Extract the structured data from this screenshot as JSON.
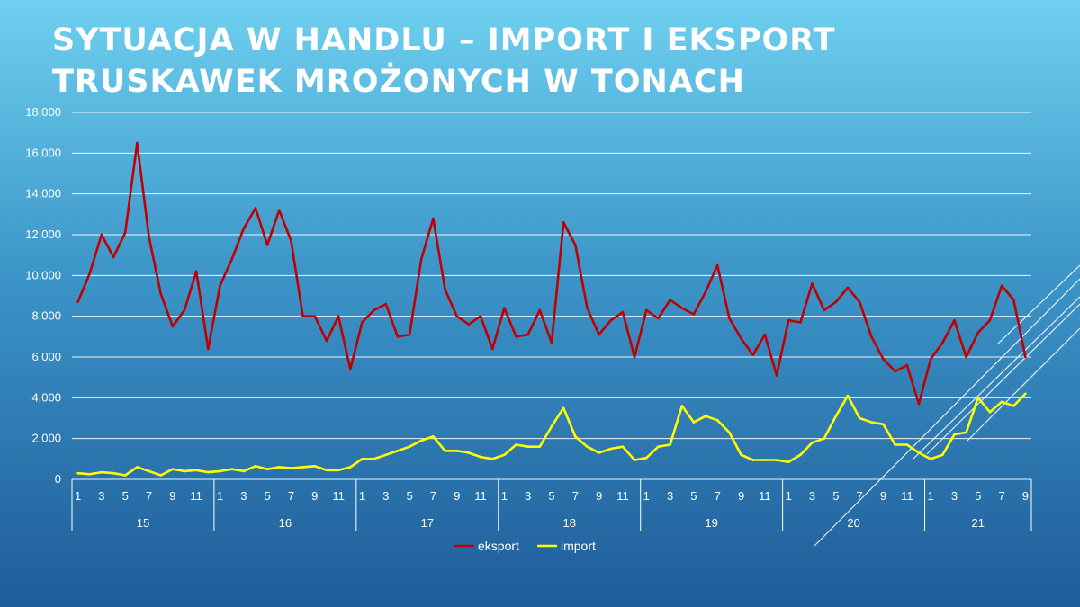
{
  "title": "SYTUACJA W HANDLU – IMPORT I EKSPORT TRUSKAWEK MROŻONYCH W TONACH",
  "chart_data": {
    "type": "line",
    "title": "SYTUACJA W HANDLU – IMPORT I EKSPORT TRUSKAWEK MROŻONYCH W TONACH",
    "xlabel": "",
    "ylabel": "",
    "ylim": [
      0,
      18000
    ],
    "yticks": [
      "0",
      "2,000",
      "4,000",
      "6,000",
      "8,000",
      "10,000",
      "12,000",
      "14,000",
      "16,000",
      "18,000"
    ],
    "grid": true,
    "legend_position": "bottom",
    "years": [
      {
        "label": "15",
        "months": 12
      },
      {
        "label": "16",
        "months": 12
      },
      {
        "label": "17",
        "months": 12
      },
      {
        "label": "18",
        "months": 12
      },
      {
        "label": "19",
        "months": 12
      },
      {
        "label": "20",
        "months": 12
      },
      {
        "label": "21",
        "months": 9
      }
    ],
    "month_tick_labels": [
      "1",
      "3",
      "5",
      "7",
      "9",
      "11"
    ],
    "series": [
      {
        "name": "eksport",
        "color": "#c00000",
        "values": [
          8700,
          10100,
          12000,
          10900,
          12100,
          16500,
          11900,
          9100,
          7500,
          8300,
          10200,
          6400,
          9500,
          10800,
          12300,
          13300,
          11500,
          13200,
          11700,
          8000,
          8000,
          6800,
          8000,
          5400,
          7700,
          8300,
          8600,
          7000,
          7100,
          10800,
          12800,
          9300,
          8000,
          7600,
          8000,
          6400,
          8400,
          7000,
          7100,
          8300,
          6700,
          12600,
          11500,
          8400,
          7100,
          7800,
          8200,
          6000,
          8300,
          7900,
          8800,
          8400,
          8100,
          9200,
          10500,
          7900,
          6900,
          6100,
          7100,
          5100,
          7800,
          7700,
          9600,
          8300,
          8700,
          9400,
          8700,
          7000,
          5900,
          5300,
          5600,
          3700,
          5900,
          6700,
          7800,
          6000,
          7200,
          7800,
          9500,
          8800,
          6000
        ]
      },
      {
        "name": "import",
        "color": "#ffff00",
        "values": [
          300,
          250,
          350,
          300,
          200,
          600,
          400,
          200,
          500,
          400,
          450,
          350,
          400,
          500,
          400,
          650,
          500,
          600,
          550,
          600,
          650,
          450,
          450,
          600,
          1000,
          1000,
          1200,
          1400,
          1600,
          1900,
          2100,
          1400,
          1400,
          1300,
          1100,
          1000,
          1200,
          1700,
          1600,
          1600,
          2600,
          3500,
          2100,
          1600,
          1300,
          1500,
          1600,
          950,
          1050,
          1600,
          1700,
          3600,
          2800,
          3100,
          2900,
          2300,
          1200,
          950,
          950,
          950,
          850,
          1200,
          1800,
          2000,
          3100,
          4100,
          3000,
          2800,
          2700,
          1700,
          1700,
          1300,
          1000,
          1200,
          2200,
          2300,
          4000,
          3300,
          3800,
          3600,
          4200
        ]
      }
    ]
  }
}
